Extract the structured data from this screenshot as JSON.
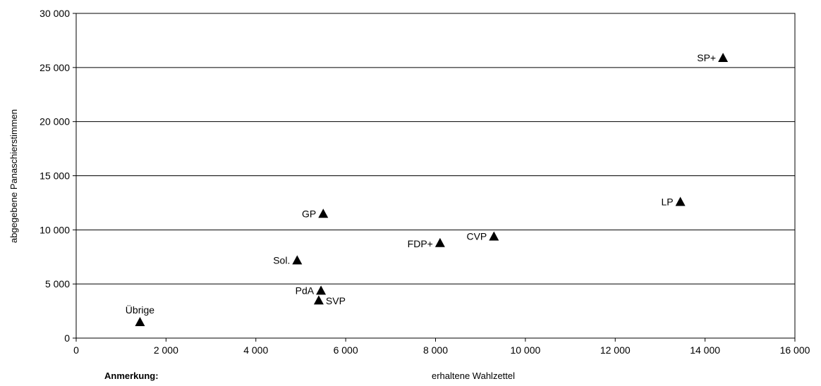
{
  "chart_data": {
    "type": "scatter",
    "xlabel": "erhaltene Wahlzettel",
    "ylabel": "abgegebene  Panaschierstimmen",
    "xlim": [
      0,
      16000
    ],
    "ylim": [
      0,
      30000
    ],
    "x_ticks": [
      0,
      2000,
      4000,
      6000,
      8000,
      10000,
      12000,
      14000,
      16000
    ],
    "x_tick_labels": [
      "0",
      "2 000",
      "4 000",
      "6 000",
      "8 000",
      "10 000",
      "12 000",
      "14 000",
      "16 000"
    ],
    "y_ticks": [
      0,
      5000,
      10000,
      15000,
      20000,
      25000,
      30000
    ],
    "y_tick_labels": [
      "0",
      "5 000",
      "10 000",
      "15 000",
      "20 000",
      "25 000",
      "30 000"
    ],
    "grid": "horizontal",
    "marker": "triangle",
    "marker_color": "#000000",
    "points": [
      {
        "label": "SP+",
        "x": 14400,
        "y": 25900
      },
      {
        "label": "LP",
        "x": 13450,
        "y": 12600
      },
      {
        "label": "GP",
        "x": 5500,
        "y": 11500
      },
      {
        "label": "CVP",
        "x": 9300,
        "y": 9400
      },
      {
        "label": "FDP+",
        "x": 8100,
        "y": 8800
      },
      {
        "label": "Sol.",
        "x": 4920,
        "y": 7200
      },
      {
        "label": "PdA",
        "x": 5450,
        "y": 4400
      },
      {
        "label": "SVP",
        "x": 5400,
        "y": 3500
      },
      {
        "label": "Übrige",
        "x": 1420,
        "y": 1500
      }
    ]
  },
  "note": "Anmerkung:"
}
